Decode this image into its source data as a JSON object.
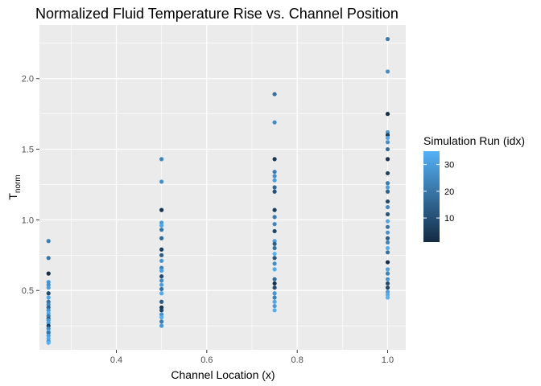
{
  "chart_data": {
    "type": "scatter",
    "title": "Normalized Fluid Temperature Rise vs. Channel Position",
    "xlabel": "Channel Location (x)",
    "ylabel_main": "T",
    "ylabel_sub": "norm",
    "xlim": [
      0.23,
      1.04
    ],
    "ylim": [
      0.08,
      2.38
    ],
    "xticks": [
      0.4,
      0.6,
      0.8,
      1.0
    ],
    "xtick_labels": [
      "0.4",
      "0.6",
      "0.8",
      "1.0"
    ],
    "yticks": [
      0.5,
      1.0,
      1.5,
      2.0
    ],
    "ytick_labels": [
      "0.5",
      "1.0",
      "1.5",
      "2.0"
    ],
    "grid": true,
    "legend": {
      "title": "Simulation Run (idx)",
      "placement": "right",
      "range": [
        1,
        35
      ],
      "ticks": [
        10,
        20,
        30
      ],
      "tick_labels": [
        "10",
        "20",
        "30"
      ],
      "color_low": "#132b43",
      "color_high": "#56b1f7"
    },
    "color_variable": "Simulation Run (idx)",
    "points": [
      {
        "x": 0.25,
        "y": 0.85,
        "idx": 22
      },
      {
        "x": 0.25,
        "y": 0.73,
        "idx": 20
      },
      {
        "x": 0.25,
        "y": 0.62,
        "idx": 2
      },
      {
        "x": 0.25,
        "y": 0.56,
        "idx": 28
      },
      {
        "x": 0.25,
        "y": 0.54,
        "idx": 26
      },
      {
        "x": 0.25,
        "y": 0.52,
        "idx": 30
      },
      {
        "x": 0.25,
        "y": 0.48,
        "idx": 9
      },
      {
        "x": 0.25,
        "y": 0.45,
        "idx": 32
      },
      {
        "x": 0.25,
        "y": 0.42,
        "idx": 18
      },
      {
        "x": 0.25,
        "y": 0.4,
        "idx": 24
      },
      {
        "x": 0.25,
        "y": 0.38,
        "idx": 15
      },
      {
        "x": 0.25,
        "y": 0.36,
        "idx": 27
      },
      {
        "x": 0.25,
        "y": 0.34,
        "idx": 33
      },
      {
        "x": 0.25,
        "y": 0.32,
        "idx": 21
      },
      {
        "x": 0.25,
        "y": 0.3,
        "idx": 12
      },
      {
        "x": 0.25,
        "y": 0.29,
        "idx": 29
      },
      {
        "x": 0.25,
        "y": 0.27,
        "idx": 31
      },
      {
        "x": 0.25,
        "y": 0.25,
        "idx": 6
      },
      {
        "x": 0.25,
        "y": 0.23,
        "idx": 25
      },
      {
        "x": 0.25,
        "y": 0.21,
        "idx": 34
      },
      {
        "x": 0.25,
        "y": 0.2,
        "idx": 19
      },
      {
        "x": 0.25,
        "y": 0.18,
        "idx": 30
      },
      {
        "x": 0.25,
        "y": 0.16,
        "idx": 33
      },
      {
        "x": 0.25,
        "y": 0.14,
        "idx": 27
      },
      {
        "x": 0.25,
        "y": 0.13,
        "idx": 35
      },
      {
        "x": 0.5,
        "y": 1.43,
        "idx": 24
      },
      {
        "x": 0.5,
        "y": 1.27,
        "idx": 26
      },
      {
        "x": 0.5,
        "y": 1.07,
        "idx": 3
      },
      {
        "x": 0.5,
        "y": 0.98,
        "idx": 29
      },
      {
        "x": 0.5,
        "y": 0.96,
        "idx": 32
      },
      {
        "x": 0.5,
        "y": 0.93,
        "idx": 20
      },
      {
        "x": 0.5,
        "y": 0.87,
        "idx": 17
      },
      {
        "x": 0.5,
        "y": 0.79,
        "idx": 5
      },
      {
        "x": 0.5,
        "y": 0.75,
        "idx": 14
      },
      {
        "x": 0.5,
        "y": 0.71,
        "idx": 28
      },
      {
        "x": 0.5,
        "y": 0.66,
        "idx": 23
      },
      {
        "x": 0.5,
        "y": 0.64,
        "idx": 31
      },
      {
        "x": 0.5,
        "y": 0.6,
        "idx": 10
      },
      {
        "x": 0.5,
        "y": 0.57,
        "idx": 25
      },
      {
        "x": 0.5,
        "y": 0.54,
        "idx": 30
      },
      {
        "x": 0.5,
        "y": 0.51,
        "idx": 19
      },
      {
        "x": 0.5,
        "y": 0.48,
        "idx": 33
      },
      {
        "x": 0.5,
        "y": 0.42,
        "idx": 13
      },
      {
        "x": 0.5,
        "y": 0.38,
        "idx": 4
      },
      {
        "x": 0.5,
        "y": 0.36,
        "idx": 8
      },
      {
        "x": 0.5,
        "y": 0.33,
        "idx": 27
      },
      {
        "x": 0.5,
        "y": 0.31,
        "idx": 34
      },
      {
        "x": 0.5,
        "y": 0.28,
        "idx": 22
      },
      {
        "x": 0.5,
        "y": 0.25,
        "idx": 29
      },
      {
        "x": 0.75,
        "y": 1.89,
        "idx": 18
      },
      {
        "x": 0.75,
        "y": 1.69,
        "idx": 25
      },
      {
        "x": 0.75,
        "y": 1.43,
        "idx": 4
      },
      {
        "x": 0.75,
        "y": 1.34,
        "idx": 22
      },
      {
        "x": 0.75,
        "y": 1.31,
        "idx": 27
      },
      {
        "x": 0.75,
        "y": 1.28,
        "idx": 30
      },
      {
        "x": 0.75,
        "y": 1.23,
        "idx": 16
      },
      {
        "x": 0.75,
        "y": 1.2,
        "idx": 11
      },
      {
        "x": 0.75,
        "y": 1.07,
        "idx": 6
      },
      {
        "x": 0.75,
        "y": 1.02,
        "idx": 21
      },
      {
        "x": 0.75,
        "y": 0.97,
        "idx": 24
      },
      {
        "x": 0.75,
        "y": 0.92,
        "idx": 8
      },
      {
        "x": 0.75,
        "y": 0.85,
        "idx": 31
      },
      {
        "x": 0.75,
        "y": 0.83,
        "idx": 14
      },
      {
        "x": 0.75,
        "y": 0.8,
        "idx": 19
      },
      {
        "x": 0.75,
        "y": 0.76,
        "idx": 35
      },
      {
        "x": 0.75,
        "y": 0.73,
        "idx": 12
      },
      {
        "x": 0.75,
        "y": 0.69,
        "idx": 26
      },
      {
        "x": 0.75,
        "y": 0.65,
        "idx": 33
      },
      {
        "x": 0.75,
        "y": 0.58,
        "idx": 17
      },
      {
        "x": 0.75,
        "y": 0.55,
        "idx": 3
      },
      {
        "x": 0.75,
        "y": 0.52,
        "idx": 9
      },
      {
        "x": 0.75,
        "y": 0.48,
        "idx": 28
      },
      {
        "x": 0.75,
        "y": 0.45,
        "idx": 23
      },
      {
        "x": 0.75,
        "y": 0.42,
        "idx": 32
      },
      {
        "x": 0.75,
        "y": 0.39,
        "idx": 29
      },
      {
        "x": 0.75,
        "y": 0.36,
        "idx": 34
      },
      {
        "x": 1.0,
        "y": 2.28,
        "idx": 21
      },
      {
        "x": 1.0,
        "y": 2.05,
        "idx": 26
      },
      {
        "x": 1.0,
        "y": 1.75,
        "idx": 2
      },
      {
        "x": 1.0,
        "y": 1.62,
        "idx": 29
      },
      {
        "x": 1.0,
        "y": 1.6,
        "idx": 5
      },
      {
        "x": 1.0,
        "y": 1.58,
        "idx": 33
      },
      {
        "x": 1.0,
        "y": 1.55,
        "idx": 27
      },
      {
        "x": 1.0,
        "y": 1.5,
        "idx": 18
      },
      {
        "x": 1.0,
        "y": 1.43,
        "idx": 3
      },
      {
        "x": 1.0,
        "y": 1.33,
        "idx": 7
      },
      {
        "x": 1.0,
        "y": 1.26,
        "idx": 22
      },
      {
        "x": 1.0,
        "y": 1.23,
        "idx": 30
      },
      {
        "x": 1.0,
        "y": 1.2,
        "idx": 15
      },
      {
        "x": 1.0,
        "y": 1.13,
        "idx": 9
      },
      {
        "x": 1.0,
        "y": 1.09,
        "idx": 25
      },
      {
        "x": 1.0,
        "y": 1.04,
        "idx": 12
      },
      {
        "x": 1.0,
        "y": 0.99,
        "idx": 32
      },
      {
        "x": 1.0,
        "y": 0.95,
        "idx": 20
      },
      {
        "x": 1.0,
        "y": 0.91,
        "idx": 28
      },
      {
        "x": 1.0,
        "y": 0.87,
        "idx": 14
      },
      {
        "x": 1.0,
        "y": 0.84,
        "idx": 24
      },
      {
        "x": 1.0,
        "y": 0.8,
        "idx": 34
      },
      {
        "x": 1.0,
        "y": 0.77,
        "idx": 19
      },
      {
        "x": 1.0,
        "y": 0.7,
        "idx": 2
      },
      {
        "x": 1.0,
        "y": 0.65,
        "idx": 31
      },
      {
        "x": 1.0,
        "y": 0.62,
        "idx": 23
      },
      {
        "x": 1.0,
        "y": 0.58,
        "idx": 27
      },
      {
        "x": 1.0,
        "y": 0.55,
        "idx": 10
      },
      {
        "x": 1.0,
        "y": 0.52,
        "idx": 8
      },
      {
        "x": 1.0,
        "y": 0.49,
        "idx": 30
      },
      {
        "x": 1.0,
        "y": 0.47,
        "idx": 33
      },
      {
        "x": 1.0,
        "y": 0.45,
        "idx": 35
      }
    ]
  }
}
